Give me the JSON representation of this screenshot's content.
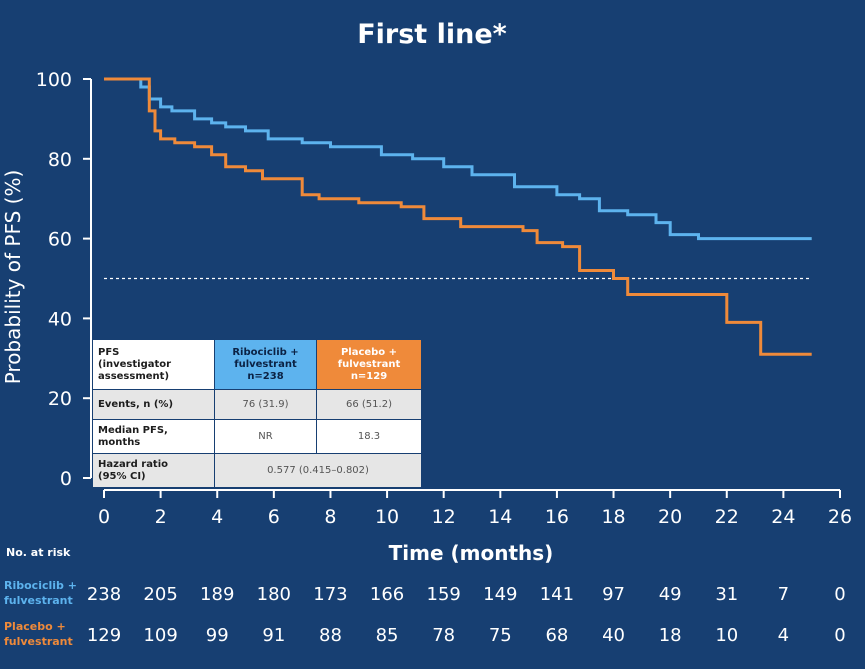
{
  "colors": {
    "background": "#173f72",
    "ribociclib": "#5db3ee",
    "placebo": "#ef8a3a",
    "text": "#ffffff"
  },
  "chart_data": {
    "type": "line",
    "title": "First line*",
    "xlabel": "Time (months)",
    "ylabel": "Probability of PFS (%)",
    "xlim": [
      0,
      26
    ],
    "ylim": [
      0,
      100
    ],
    "xticks": [
      0,
      2,
      4,
      6,
      8,
      10,
      12,
      14,
      16,
      18,
      20,
      22,
      24,
      26
    ],
    "yticks": [
      0,
      20,
      40,
      60,
      80,
      100
    ],
    "reference_line_y": 50,
    "series": [
      {
        "name": "Ribociclib + fulvestrant",
        "color": "#5db3ee",
        "x": [
          0,
          1.1,
          1.3,
          1.6,
          2.0,
          2.4,
          3.2,
          3.8,
          4.3,
          5.0,
          5.8,
          7.0,
          8.0,
          9.8,
          10.9,
          12.0,
          13.0,
          14.5,
          16.0,
          16.8,
          17.5,
          18.5,
          19.5,
          20.0,
          21.0,
          25.0
        ],
        "y": [
          100,
          100,
          98,
          95,
          93,
          92,
          90,
          89,
          88,
          87,
          85,
          84,
          83,
          81,
          80,
          78,
          76,
          73,
          71,
          70,
          67,
          66,
          64,
          61,
          60,
          60
        ]
      },
      {
        "name": "Placebo + fulvestrant",
        "color": "#ef8a3a",
        "x": [
          0,
          1.0,
          1.6,
          1.8,
          2.0,
          2.5,
          3.2,
          3.8,
          4.3,
          5.0,
          5.6,
          7.0,
          7.6,
          9.0,
          10.5,
          11.3,
          12.6,
          14.8,
          15.3,
          16.2,
          16.8,
          18.0,
          18.5,
          19.5,
          21.5,
          22.0,
          23.2,
          25.0
        ],
        "y": [
          100,
          100,
          92,
          87,
          85,
          84,
          83,
          81,
          78,
          77,
          75,
          71,
          70,
          69,
          68,
          65,
          63,
          62,
          59,
          58,
          52,
          50,
          46,
          46,
          46,
          39,
          31,
          31
        ]
      }
    ]
  },
  "table": {
    "header": {
      "pfs": [
        "PFS",
        "(investigator",
        "assessment)"
      ],
      "ribociclib": [
        "Ribociclib +",
        "fulvestrant",
        "n=238"
      ],
      "placebo": [
        "Placebo +",
        "fulvestrant",
        "n=129"
      ]
    },
    "events": {
      "label": "Events, n (%)",
      "ribociclib": "76 (31.9)",
      "placebo": "66 (51.2)"
    },
    "median": {
      "label": [
        "Median PFS,",
        "months"
      ],
      "ribociclib": "NR",
      "placebo": "18.3"
    },
    "hazard": {
      "label": [
        "Hazard ratio",
        "(95% CI)"
      ],
      "value": "0.577 (0.415–0.802)"
    }
  },
  "risk": {
    "title": "No. at risk",
    "ribociclib": {
      "label": [
        "Ribociclib +",
        "fulvestrant"
      ],
      "values": [
        "238",
        "205",
        "189",
        "180",
        "173",
        "166",
        "159",
        "149",
        "141",
        "97",
        "49",
        "31",
        "7",
        "0"
      ]
    },
    "placebo": {
      "label": [
        "Placebo +",
        "fulvestrant"
      ],
      "values": [
        "129",
        "109",
        "99",
        "91",
        "88",
        "85",
        "78",
        "75",
        "68",
        "40",
        "18",
        "10",
        "4",
        "0"
      ]
    }
  }
}
